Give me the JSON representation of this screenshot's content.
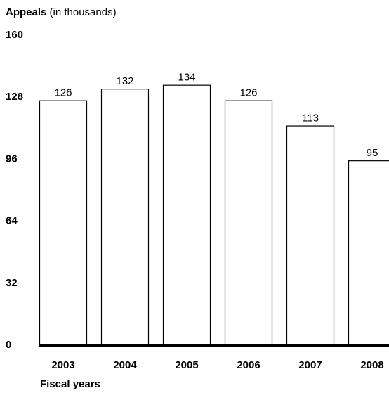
{
  "chart_data": {
    "type": "bar",
    "ylabel_bold": "Appeals",
    "ylabel_rest": " (in thousands)",
    "xlabel": "Fiscal years",
    "categories": [
      "2003",
      "2004",
      "2005",
      "2006",
      "2007",
      "2008"
    ],
    "values": [
      126,
      132,
      134,
      126,
      113,
      95
    ],
    "value_labels": [
      "126",
      "132",
      "134",
      "126",
      "113",
      "95"
    ],
    "ylim": [
      0,
      160
    ],
    "yticks": [
      0,
      32,
      64,
      96,
      128,
      160
    ],
    "ytick_labels": [
      "0",
      "32",
      "64",
      "96",
      "128",
      "160"
    ],
    "grid": false,
    "legend": "none",
    "colors": {
      "bar_fill": "#ffffff",
      "bar_stroke": "#000000",
      "axis": "#000000",
      "text": "#000000"
    }
  }
}
